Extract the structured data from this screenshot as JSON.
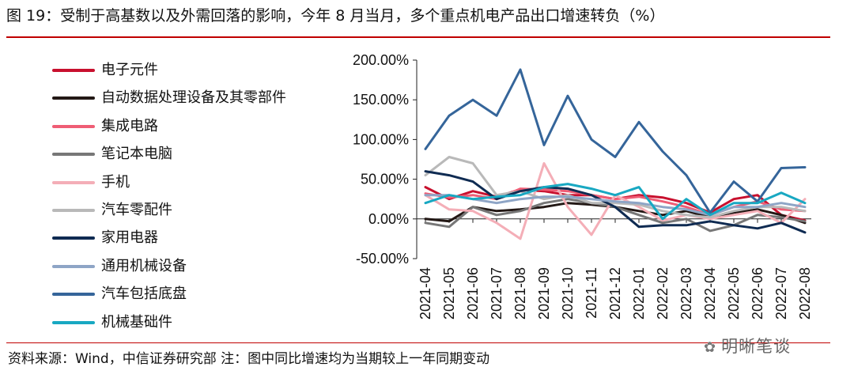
{
  "figure": {
    "title": "图 19：受制于高基数以及外需回落的影响，今年 8 月当月，多个重点机电产品出口增速转负（%）",
    "source": "资料来源：Wind，中信证券研究部 注：图中同比增速均为当期较上一年同期变动",
    "watermark": "明晰笔谈"
  },
  "chart_data": {
    "type": "line",
    "title": "",
    "xlabel": "",
    "ylabel": "",
    "ylim": [
      -50,
      200
    ],
    "yticks": [
      -50,
      0,
      50,
      100,
      150,
      200
    ],
    "ytick_labels": [
      "-50.00%",
      "0.00%",
      "50.00%",
      "100.00%",
      "150.00%",
      "200.00%"
    ],
    "grid": false,
    "legend_position": "left",
    "categories": [
      "2021-04",
      "2021-05",
      "2021-06",
      "2021-07",
      "2021-08",
      "2021-09",
      "2021-10",
      "2021-11",
      "2021-12",
      "2022-01",
      "2022-02",
      "2022-03",
      "2022-04",
      "2022-05",
      "2022-06",
      "2022-07",
      "2022-08"
    ],
    "series": [
      {
        "name": "电子元件",
        "color": "#c8102e",
        "values": [
          40,
          25,
          35,
          28,
          37,
          35,
          30,
          30,
          25,
          30,
          27,
          20,
          8,
          25,
          30,
          5,
          -2
        ]
      },
      {
        "name": "自动数据处理设备及其零部件",
        "color": "#231815",
        "values": [
          0,
          -3,
          15,
          10,
          12,
          15,
          20,
          18,
          15,
          10,
          5,
          10,
          2,
          8,
          12,
          5,
          -5
        ]
      },
      {
        "name": "集成电路",
        "color": "#ef5d75",
        "values": [
          32,
          27,
          30,
          25,
          38,
          37,
          35,
          30,
          25,
          28,
          22,
          15,
          5,
          15,
          22,
          12,
          10
        ]
      },
      {
        "name": "笔记本电脑",
        "color": "#777777",
        "values": [
          -5,
          -10,
          15,
          5,
          10,
          20,
          25,
          20,
          15,
          5,
          -5,
          0,
          -15,
          -8,
          5,
          2,
          -3
        ]
      },
      {
        "name": "手机",
        "color": "#f4aeb7",
        "values": [
          30,
          12,
          10,
          -5,
          -25,
          70,
          15,
          -20,
          30,
          15,
          -2,
          5,
          0,
          5,
          10,
          -5,
          25
        ]
      },
      {
        "name": "汽车零配件",
        "color": "#b9b9b9",
        "values": [
          55,
          78,
          70,
          30,
          35,
          25,
          30,
          20,
          20,
          18,
          10,
          5,
          2,
          10,
          15,
          15,
          10
        ]
      },
      {
        "name": "家用电器",
        "color": "#0f2b52",
        "values": [
          60,
          55,
          47,
          25,
          35,
          40,
          38,
          30,
          15,
          -10,
          -8,
          -8,
          -3,
          -8,
          -12,
          -5,
          -17
        ]
      },
      {
        "name": "通用机械设备",
        "color": "#8ea5c6",
        "values": [
          30,
          30,
          25,
          20,
          25,
          28,
          28,
          25,
          22,
          20,
          15,
          12,
          5,
          15,
          15,
          20,
          15
        ]
      },
      {
        "name": "汽车包括底盘",
        "color": "#35659a",
        "values": [
          88,
          130,
          150,
          130,
          188,
          93,
          155,
          100,
          78,
          122,
          85,
          55,
          8,
          47,
          22,
          64,
          65
        ]
      },
      {
        "name": "机械基础件",
        "color": "#18a8c2",
        "values": [
          20,
          30,
          25,
          28,
          30,
          40,
          44,
          38,
          30,
          40,
          0,
          25,
          5,
          20,
          20,
          33,
          20
        ]
      }
    ]
  }
}
